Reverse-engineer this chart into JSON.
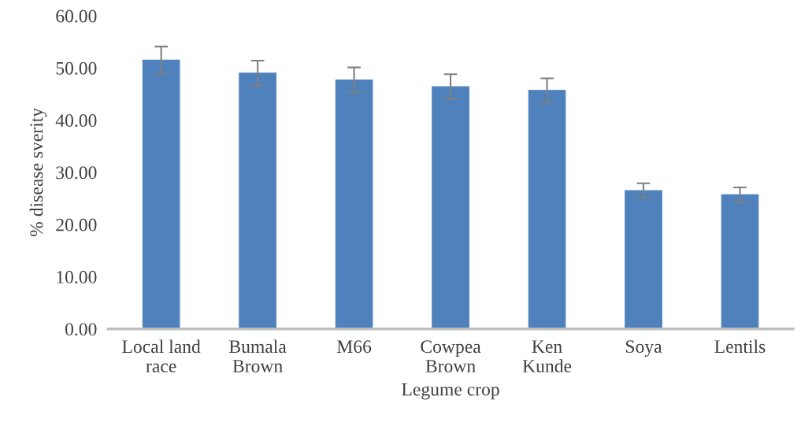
{
  "chart_data": {
    "type": "bar",
    "xlabel": "Legume crop",
    "ylabel": "% disease sverity",
    "categories": [
      "Local land\nrace",
      "Bumala\nBrown",
      "M66",
      "Cowpea\nBrown",
      "Ken\nKunde",
      "Soya",
      "Lentils"
    ],
    "values": [
      51.5,
      49.0,
      47.7,
      46.4,
      45.7,
      26.5,
      25.7
    ],
    "errors": [
      2.6,
      2.4,
      2.4,
      2.4,
      2.3,
      1.4,
      1.4
    ],
    "color": "#4f81bd",
    "ylim": [
      0,
      60
    ],
    "yticks": [
      {
        "value": 0,
        "label": "0.00"
      },
      {
        "value": 10,
        "label": "10.00"
      },
      {
        "value": 20,
        "label": "20.00"
      },
      {
        "value": 30,
        "label": "30.00"
      },
      {
        "value": 40,
        "label": "40.00"
      },
      {
        "value": 50,
        "label": "50.00"
      },
      {
        "value": 60,
        "label": "60.00"
      }
    ],
    "grid": false,
    "legend": false
  }
}
